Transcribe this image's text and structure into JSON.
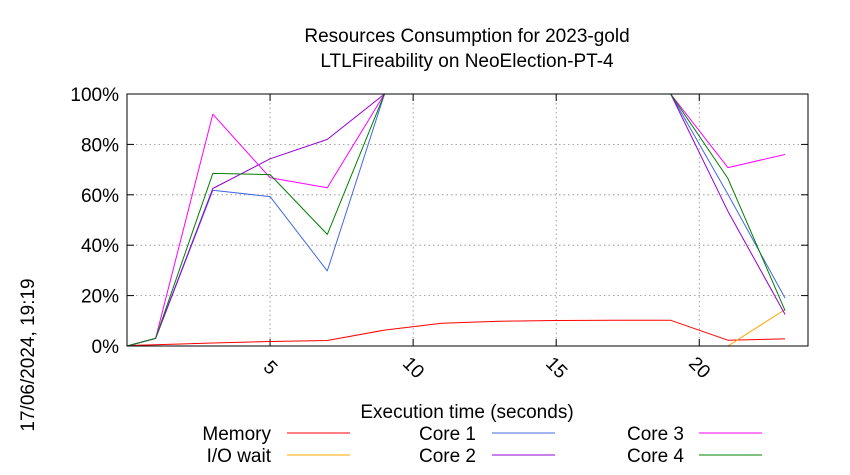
{
  "chart_data": {
    "type": "line",
    "title": "Resources Consumption for 2023-gold",
    "subtitle": "LTLFireability on NeoElection-PT-4",
    "xlabel": "Execution time (seconds)",
    "ylabel": "",
    "xlim": [
      0,
      23.8
    ],
    "ylim": [
      0,
      100
    ],
    "x_ticks": [
      "5",
      "10",
      "15",
      "20"
    ],
    "y_ticks": [
      "0%",
      "20%",
      "40%",
      "60%",
      "80%",
      "100%"
    ],
    "grid": true,
    "legend_placement": "bottom",
    "side_label": "17/06/2024, 19:19",
    "series": [
      {
        "name": "Memory",
        "color": "#ff0000",
        "x": [
          0,
          1,
          3,
          5,
          7,
          9,
          11,
          13,
          15,
          17,
          19,
          21,
          23
        ],
        "y": [
          0.2,
          0.5,
          1.2,
          1.8,
          2.2,
          6.3,
          9.0,
          9.8,
          10.1,
          10.2,
          10.2,
          2.3,
          2.8
        ]
      },
      {
        "name": "I/O wait",
        "color": "#ffa500",
        "x": [
          0,
          1,
          3,
          5,
          7,
          9,
          11,
          13,
          15,
          17,
          19,
          21,
          23
        ],
        "y": [
          0,
          0,
          0,
          0,
          0,
          0,
          0,
          0,
          0,
          0,
          0,
          0,
          14.5
        ]
      },
      {
        "name": "Core 1",
        "color": "#4169e1",
        "x": [
          0,
          1,
          3,
          5,
          7,
          9,
          11,
          13,
          15,
          17,
          19,
          21,
          23
        ],
        "y": [
          0,
          3,
          61.8,
          59.3,
          29.8,
          100,
          100,
          100,
          100,
          100,
          100,
          60.2,
          19
        ]
      },
      {
        "name": "Core 2",
        "color": "#9400d3",
        "x": [
          0,
          1,
          3,
          5,
          7,
          9,
          11,
          13,
          15,
          17,
          19,
          21,
          23
        ],
        "y": [
          0,
          3,
          62.5,
          74.3,
          82,
          100,
          100,
          100,
          100,
          100,
          100,
          53.5,
          12.5
        ]
      },
      {
        "name": "Core 3",
        "color": "#ff00ff",
        "x": [
          0,
          1,
          3,
          5,
          7,
          9,
          11,
          13,
          15,
          17,
          19,
          21,
          23
        ],
        "y": [
          0,
          3,
          92,
          66.8,
          62.8,
          100,
          100,
          100,
          100,
          100,
          100,
          70.8,
          76
        ]
      },
      {
        "name": "Core 4",
        "color": "#008000",
        "x": [
          0,
          1,
          3,
          5,
          7,
          9,
          11,
          13,
          15,
          17,
          19,
          21,
          23
        ],
        "y": [
          0,
          3,
          68.5,
          68,
          44.3,
          100,
          100,
          100,
          100,
          100,
          100,
          66.5,
          14
        ]
      }
    ]
  }
}
